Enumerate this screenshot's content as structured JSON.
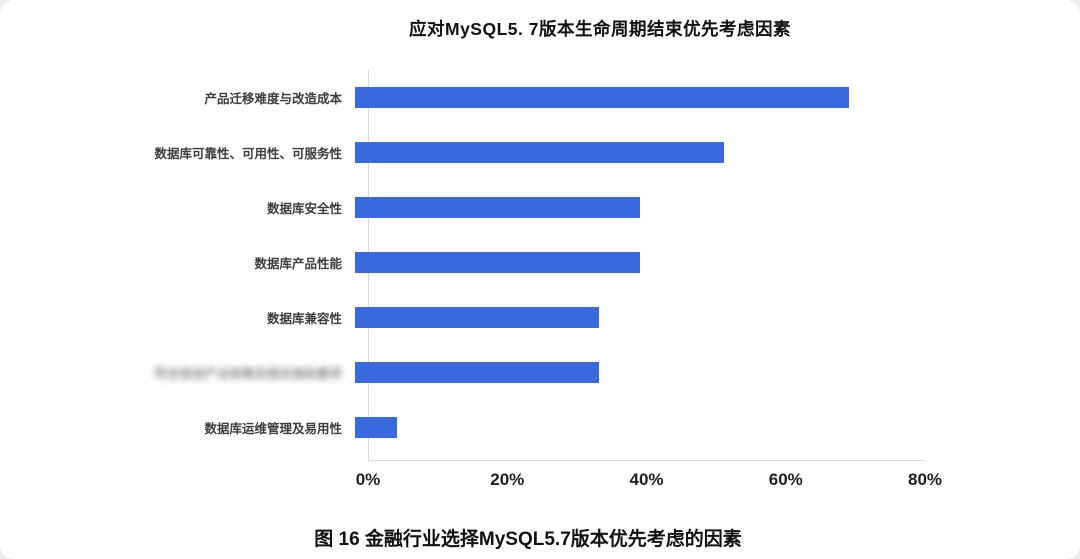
{
  "chart_data": {
    "type": "bar",
    "orientation": "horizontal",
    "title": "应对MySQL5. 7版本生命周期结束优先考虑因素",
    "caption": "图 16 金融行业选择MySQL5.7版本优先考虑的因素",
    "categories": [
      "产品迁移难度与改造成本",
      "数据库可靠性、可用性、可服务性",
      "数据库安全性",
      "数据库产品性能",
      "数据库兼容性",
      "符合信创产业政策及相关指标要求",
      "数据库运维管理及易用性"
    ],
    "blurred": [
      false,
      false,
      false,
      false,
      false,
      true,
      false
    ],
    "values": [
      71,
      53,
      41,
      41,
      35,
      35,
      6
    ],
    "xlim": [
      0,
      80
    ],
    "x_ticks": [
      "0%",
      "20%",
      "40%",
      "60%",
      "80%"
    ],
    "x_tick_values": [
      0,
      20,
      40,
      60,
      80
    ],
    "bar_color": "#3a68dd",
    "grid": false,
    "legend": "none"
  }
}
